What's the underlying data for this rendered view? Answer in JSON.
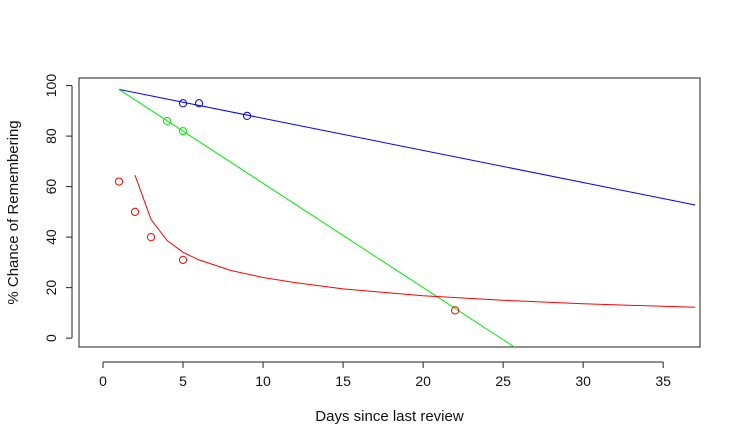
{
  "chart_data": {
    "type": "scatter",
    "title": "",
    "xlabel": "Days since last review",
    "ylabel": "% Chance of Remembering",
    "xlim": [
      -1.5,
      37.3
    ],
    "ylim": [
      -3.5,
      103
    ],
    "x_ticks": [
      0,
      5,
      10,
      15,
      20,
      25,
      30,
      35
    ],
    "y_ticks": [
      0,
      20,
      40,
      60,
      80,
      100
    ],
    "grid": false,
    "legend": "none",
    "series": [
      {
        "color": "#0000ff",
        "points": [
          [
            5,
            93
          ],
          [
            6,
            93
          ],
          [
            9,
            88
          ]
        ],
        "curve": [
          [
            1,
            98.5
          ],
          [
            37,
            52.7
          ]
        ]
      },
      {
        "color": "#00ee00",
        "points": [
          [
            4,
            86
          ],
          [
            5,
            82
          ]
        ],
        "curve": [
          [
            1,
            98.5
          ],
          [
            25.7,
            -3.5
          ]
        ]
      },
      {
        "color": "#ff0000",
        "points": [
          [
            1,
            62
          ],
          [
            2,
            50
          ],
          [
            3,
            40
          ],
          [
            5,
            31
          ],
          [
            22,
            11
          ]
        ],
        "curve": [
          [
            2,
            64.5
          ],
          [
            3,
            47
          ],
          [
            4,
            38.7
          ],
          [
            5,
            34
          ],
          [
            6,
            31
          ],
          [
            8,
            26.8
          ],
          [
            10,
            24
          ],
          [
            12,
            22
          ],
          [
            15,
            19.5
          ],
          [
            20,
            16.8
          ],
          [
            25,
            15
          ],
          [
            30,
            13.6
          ],
          [
            37,
            12.2
          ]
        ]
      }
    ]
  }
}
